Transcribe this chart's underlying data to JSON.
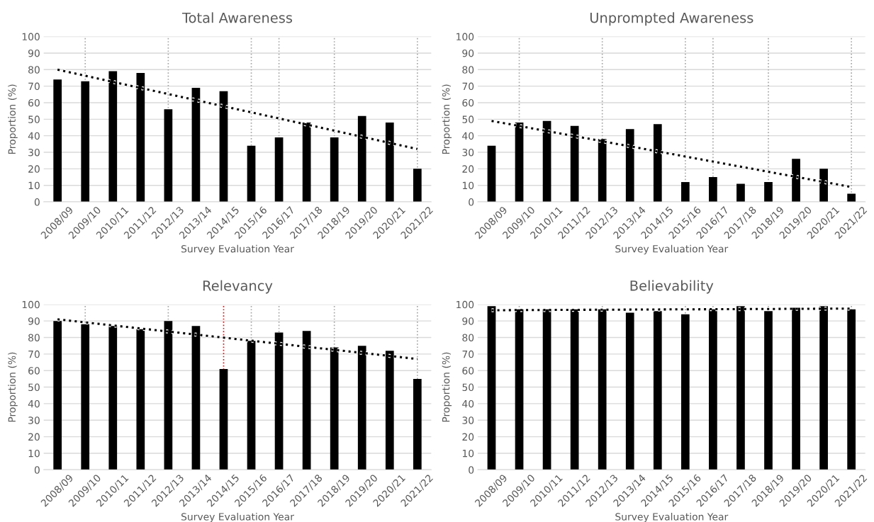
{
  "chart_data": [
    {
      "type": "bar",
      "title": "Total Awareness",
      "xlabel": "Survey Evaluation Year",
      "ylabel": "Proportion (%)",
      "categories": [
        "2008/09",
        "2009/10",
        "2010/11",
        "2011/12",
        "2012/13",
        "2013/14",
        "2014/15",
        "2015/16",
        "2016/17",
        "2017/18",
        "2018/19",
        "2019/20",
        "2020/21",
        "2021/22"
      ],
      "series": [
        {
          "type": "bar",
          "color": "#000000",
          "values": [
            74,
            73,
            79,
            78,
            56,
            69,
            67,
            34,
            39,
            48,
            39,
            52,
            48,
            20
          ]
        },
        {
          "type": "line",
          "color": "#000000",
          "line_style": "dotted",
          "x": [
            "2008/09",
            "2021/22"
          ],
          "values": [
            80,
            32
          ]
        }
      ],
      "ylim": [
        0,
        100
      ],
      "yticks": [
        0,
        10,
        20,
        30,
        40,
        50,
        60,
        70,
        80,
        90,
        100
      ],
      "grid": "y",
      "ref_lines": [
        {
          "axis": "x",
          "value": "2009/10",
          "color": "#a6a6a6",
          "line_style": "dotted"
        },
        {
          "axis": "x",
          "value": "2012/13",
          "color": "#a6a6a6",
          "line_style": "dotted"
        },
        {
          "axis": "x",
          "value": "2015/16",
          "color": "#a6a6a6",
          "line_style": "dotted"
        },
        {
          "axis": "x",
          "value": "2016/17",
          "color": "#a6a6a6",
          "line_style": "dotted"
        },
        {
          "axis": "x",
          "value": "2018/19",
          "color": "#a6a6a6",
          "line_style": "dotted"
        },
        {
          "axis": "x",
          "value": "2021/22",
          "color": "#a6a6a6",
          "line_style": "dotted"
        }
      ]
    },
    {
      "type": "bar",
      "title": "Unprompted Awareness",
      "xlabel": "Survey Evaluation Year",
      "ylabel": "Proportion (%)",
      "categories": [
        "2008/09",
        "2009/10",
        "2010/11",
        "2011/12",
        "2012/13",
        "2013/14",
        "2014/15",
        "2015/16",
        "2016/17",
        "2017/18",
        "2018/19",
        "2019/20",
        "2020/21",
        "2021/22"
      ],
      "series": [
        {
          "type": "bar",
          "color": "#000000",
          "values": [
            34,
            48,
            49,
            46,
            38,
            44,
            47,
            12,
            15,
            11,
            12,
            26,
            20,
            5
          ]
        },
        {
          "type": "line",
          "color": "#000000",
          "line_style": "dotted",
          "x": [
            "2008/09",
            "2021/22"
          ],
          "values": [
            49,
            9
          ]
        }
      ],
      "ylim": [
        0,
        100
      ],
      "yticks": [
        0,
        10,
        20,
        30,
        40,
        50,
        60,
        70,
        80,
        90,
        100
      ],
      "grid": "y",
      "ref_lines": [
        {
          "axis": "x",
          "value": "2009/10",
          "color": "#a6a6a6",
          "line_style": "dotted"
        },
        {
          "axis": "x",
          "value": "2012/13",
          "color": "#a6a6a6",
          "line_style": "dotted"
        },
        {
          "axis": "x",
          "value": "2015/16",
          "color": "#a6a6a6",
          "line_style": "dotted"
        },
        {
          "axis": "x",
          "value": "2016/17",
          "color": "#a6a6a6",
          "line_style": "dotted"
        },
        {
          "axis": "x",
          "value": "2018/19",
          "color": "#a6a6a6",
          "line_style": "dotted"
        },
        {
          "axis": "x",
          "value": "2021/22",
          "color": "#a6a6a6",
          "line_style": "dotted"
        }
      ]
    },
    {
      "type": "bar",
      "title": "Relevancy",
      "xlabel": "Survey Evaluation Year",
      "ylabel": "Proportion (%)",
      "categories": [
        "2008/09",
        "2009/10",
        "2010/11",
        "2011/12",
        "2012/13",
        "2013/14",
        "2014/15",
        "2015/16",
        "2016/17",
        "2017/18",
        "2018/19",
        "2019/20",
        "2020/21",
        "2021/22"
      ],
      "series": [
        {
          "type": "bar",
          "color": "#000000",
          "values": [
            90,
            88,
            87,
            85,
            90,
            87,
            61,
            78,
            83,
            84,
            74,
            75,
            72,
            55
          ]
        },
        {
          "type": "line",
          "color": "#000000",
          "line_style": "dotted",
          "x": [
            "2008/09",
            "2021/22"
          ],
          "values": [
            91,
            67
          ]
        }
      ],
      "ylim": [
        0,
        100
      ],
      "yticks": [
        0,
        10,
        20,
        30,
        40,
        50,
        60,
        70,
        80,
        90,
        100
      ],
      "grid": "y",
      "ref_lines": [
        {
          "axis": "x",
          "value": "2009/10",
          "color": "#a6a6a6",
          "line_style": "dotted"
        },
        {
          "axis": "x",
          "value": "2012/13",
          "color": "#a6a6a6",
          "line_style": "dotted"
        },
        {
          "axis": "x",
          "value": "2014/15",
          "color": "#ff0000",
          "line_style": "dotted"
        },
        {
          "axis": "x",
          "value": "2015/16",
          "color": "#a6a6a6",
          "line_style": "dotted"
        },
        {
          "axis": "x",
          "value": "2016/17",
          "color": "#a6a6a6",
          "line_style": "dotted"
        },
        {
          "axis": "x",
          "value": "2018/19",
          "color": "#a6a6a6",
          "line_style": "dotted"
        },
        {
          "axis": "x",
          "value": "2021/22",
          "color": "#a6a6a6",
          "line_style": "dotted"
        }
      ]
    },
    {
      "type": "bar",
      "title": "Believability",
      "xlabel": "Survey Evaluation Year",
      "ylabel": "Proportion (%)",
      "categories": [
        "2008/09",
        "2009/10",
        "2010/11",
        "2011/12",
        "2012/13",
        "2013/14",
        "2014/15",
        "2015/16",
        "2016/17",
        "2017/18",
        "2018/19",
        "2019/20",
        "2020/21",
        "2021/22"
      ],
      "series": [
        {
          "type": "bar",
          "color": "#000000",
          "values": [
            99,
            97,
            97,
            97,
            97,
            95,
            96,
            94,
            97,
            99,
            96,
            98,
            99,
            97
          ]
        },
        {
          "type": "line",
          "color": "#000000",
          "line_style": "dotted",
          "x": [
            "2008/09",
            "2021/22"
          ],
          "values": [
            96.5,
            97.5
          ]
        }
      ],
      "ylim": [
        0,
        100
      ],
      "yticks": [
        0,
        10,
        20,
        30,
        40,
        50,
        60,
        70,
        80,
        90,
        100
      ],
      "grid": "y",
      "ref_lines": [
        {
          "axis": "x",
          "value": "2009/10",
          "color": "#a6a6a6",
          "line_style": "dotted"
        },
        {
          "axis": "x",
          "value": "2012/13",
          "color": "#a6a6a6",
          "line_style": "dotted"
        },
        {
          "axis": "x",
          "value": "2015/16",
          "color": "#a6a6a6",
          "line_style": "dotted"
        },
        {
          "axis": "x",
          "value": "2016/17",
          "color": "#a6a6a6",
          "line_style": "dotted"
        },
        {
          "axis": "x",
          "value": "2018/19",
          "color": "#a6a6a6",
          "line_style": "dotted"
        },
        {
          "axis": "x",
          "value": "2021/22",
          "color": "#a6a6a6",
          "line_style": "dotted"
        }
      ]
    }
  ]
}
